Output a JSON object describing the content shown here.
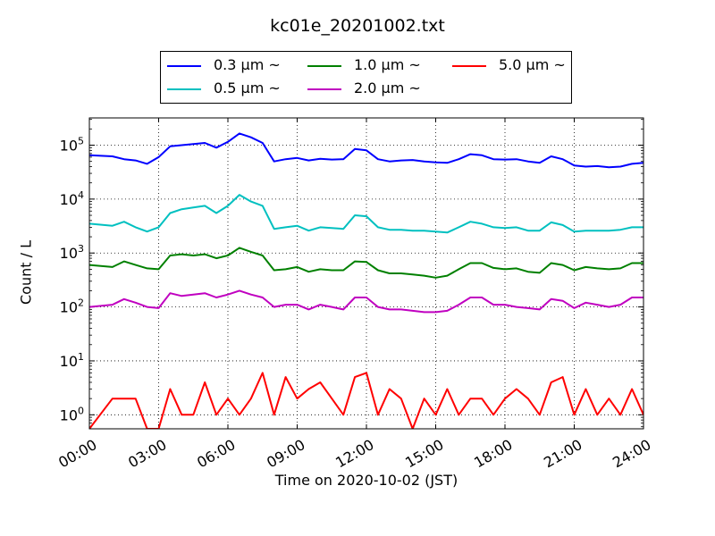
{
  "chart_data": {
    "type": "line",
    "title": "kc01e_20201002.txt",
    "xlabel": "Time on 2020-10-02 (JST)",
    "ylabel": "Count / L",
    "yscale": "log",
    "ylim": [
      0.55,
      320000
    ],
    "xlim": [
      "00:00",
      "24:00"
    ],
    "xticks": [
      "00:00",
      "03:00",
      "06:00",
      "09:00",
      "12:00",
      "15:00",
      "18:00",
      "21:00",
      "24:00"
    ],
    "yticks": [
      {
        "value": 1,
        "label": "10",
        "exp": "0"
      },
      {
        "value": 10,
        "label": "10",
        "exp": "1"
      },
      {
        "value": 100,
        "label": "10",
        "exp": "2"
      },
      {
        "value": 1000,
        "label": "10",
        "exp": "3"
      },
      {
        "value": 10000,
        "label": "10",
        "exp": "4"
      },
      {
        "value": 100000,
        "label": "10",
        "exp": "5"
      }
    ],
    "grid": true,
    "legend_position": "top-center",
    "x_hours": [
      0,
      1,
      1.5,
      2,
      2.5,
      3,
      3.5,
      4,
      4.5,
      5,
      5.5,
      6,
      6.5,
      7,
      7.5,
      8,
      8.5,
      9,
      9.5,
      10,
      10.5,
      11,
      11.5,
      12,
      12.5,
      13,
      13.5,
      14,
      14.5,
      15,
      15.5,
      16,
      16.5,
      17,
      17.5,
      18,
      18.5,
      19,
      19.5,
      20,
      20.5,
      21,
      21.5,
      22,
      22.5,
      23,
      23.5,
      24
    ],
    "series": [
      {
        "name": "0.3 μm ~",
        "color": "#0000ff",
        "values": [
          65000,
          62000,
          55000,
          52000,
          45000,
          60000,
          95000,
          100000,
          105000,
          110000,
          90000,
          115000,
          165000,
          140000,
          110000,
          50000,
          55000,
          58000,
          52000,
          56000,
          54000,
          55000,
          85000,
          80000,
          55000,
          50000,
          52000,
          53000,
          50000,
          48000,
          47000,
          55000,
          68000,
          65000,
          55000,
          54000,
          55000,
          50000,
          47000,
          62000,
          55000,
          42000,
          40000,
          41000,
          39000,
          40000,
          45000,
          47000
        ]
      },
      {
        "name": "0.5 μm ~",
        "color": "#00c0c0",
        "values": [
          3500,
          3200,
          3800,
          3000,
          2500,
          3000,
          5500,
          6500,
          7000,
          7500,
          5500,
          7500,
          12000,
          9000,
          7500,
          2800,
          3000,
          3200,
          2600,
          3000,
          2900,
          2800,
          5000,
          4800,
          3000,
          2700,
          2700,
          2600,
          2600,
          2500,
          2400,
          3000,
          3800,
          3500,
          3000,
          2900,
          3000,
          2600,
          2600,
          3700,
          3300,
          2500,
          2600,
          2600,
          2600,
          2700,
          3000,
          3000
        ]
      },
      {
        "name": "1.0 μm ~",
        "color": "#008000",
        "values": [
          600,
          550,
          700,
          600,
          520,
          500,
          900,
          950,
          900,
          950,
          800,
          900,
          1250,
          1050,
          900,
          480,
          500,
          550,
          450,
          500,
          480,
          480,
          700,
          680,
          480,
          420,
          420,
          400,
          380,
          350,
          380,
          500,
          650,
          650,
          530,
          500,
          520,
          450,
          430,
          650,
          600,
          480,
          550,
          520,
          500,
          520,
          650,
          650
        ]
      },
      {
        "name": "2.0 μm ~",
        "color": "#c000c0",
        "values": [
          100,
          110,
          140,
          120,
          100,
          95,
          180,
          160,
          170,
          180,
          150,
          170,
          200,
          170,
          150,
          100,
          110,
          110,
          90,
          110,
          100,
          90,
          150,
          150,
          100,
          90,
          90,
          85,
          80,
          80,
          85,
          110,
          150,
          150,
          110,
          110,
          100,
          95,
          90,
          140,
          130,
          95,
          120,
          110,
          100,
          110,
          150,
          150
        ]
      },
      {
        "name": "5.0 μm ~",
        "color": "#ff0000",
        "values": [
          0.5,
          2,
          2,
          2,
          0.5,
          0.5,
          3,
          1,
          1,
          4,
          1,
          2,
          1,
          2,
          6,
          1,
          5,
          2,
          3,
          4,
          2,
          1,
          5,
          6,
          1,
          3,
          2,
          0.5,
          2,
          1,
          3,
          1,
          2,
          2,
          1,
          2,
          3,
          2,
          1,
          4,
          5,
          1,
          3,
          1,
          2,
          1,
          3,
          1
        ]
      }
    ]
  }
}
